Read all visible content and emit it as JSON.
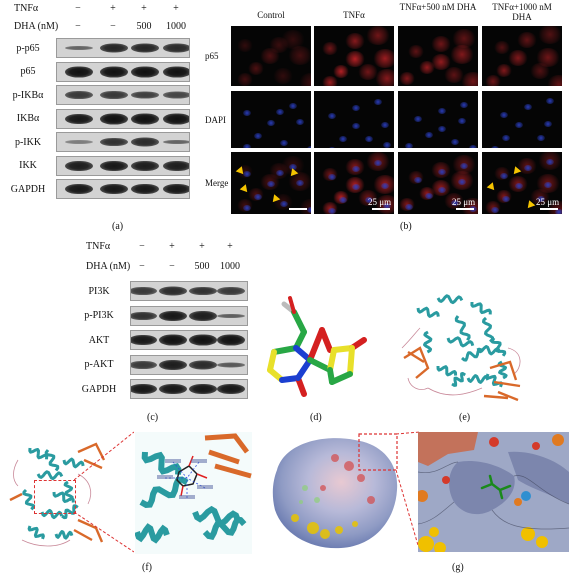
{
  "panel_a": {
    "header_rows": [
      {
        "label": "TNFα",
        "values": [
          "−",
          "+",
          "+",
          "+"
        ]
      },
      {
        "label": "DHA (nM)",
        "values": [
          "−",
          "−",
          "500",
          "1000"
        ]
      }
    ],
    "blots": [
      "p-p65",
      "p65",
      "p-IKBα",
      "IKBα",
      "p-IKK",
      "IKK",
      "GAPDH"
    ],
    "caption": "(a)"
  },
  "panel_b": {
    "columns": [
      "Control",
      "TNFα",
      "TNFα+500 nM DHA",
      "TNFα+1000 nM DHA"
    ],
    "rows": [
      "p65",
      "DAPI",
      "Merge"
    ],
    "scale_bar": "25 μm",
    "caption": "(b)"
  },
  "panel_c": {
    "header_rows": [
      {
        "label": "TNFα",
        "values": [
          "−",
          "+",
          "+",
          "+"
        ]
      },
      {
        "label": "DHA (nM)",
        "values": [
          "−",
          "−",
          "500",
          "1000"
        ]
      }
    ],
    "blots": [
      "PI3K",
      "p-PI3K",
      "AKT",
      "p-AKT",
      "GAPDH"
    ],
    "caption": "(c)"
  },
  "panel_d": {
    "caption": "(d)"
  },
  "panel_e": {
    "caption": "(e)"
  },
  "panel_f": {
    "caption": "(f)"
  },
  "panel_g": {
    "caption": "(g)"
  },
  "colors": {
    "p65_red": "#d8262b",
    "dapi_blue": "#2b3fc2",
    "arrow_yellow": "#f5c400",
    "protein_teal": "#2a9ba0",
    "sheet_orange": "#d9692a"
  }
}
